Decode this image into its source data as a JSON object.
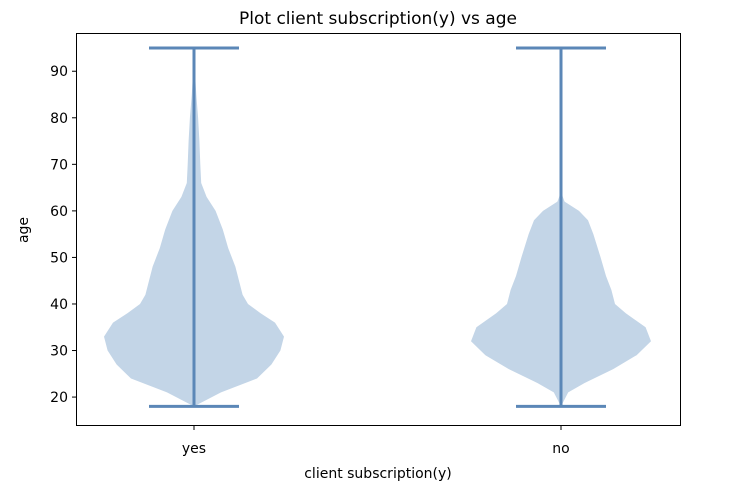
{
  "chart_data": {
    "type": "violin",
    "title": "Plot client subscription(y) vs age",
    "xlabel": "client subscription(y)",
    "ylabel": "age",
    "categories": [
      "yes",
      "no"
    ],
    "ylim": [
      14,
      98
    ],
    "yticks": [
      20,
      30,
      40,
      50,
      60,
      70,
      80,
      90
    ],
    "grid": false,
    "colors": {
      "fill": "#c3d5e7",
      "line": "#5b87b7"
    },
    "violins": [
      {
        "category": "yes",
        "min": 18,
        "max": 95,
        "profile": [
          [
            18,
            0.0
          ],
          [
            21,
            0.3
          ],
          [
            24,
            0.7
          ],
          [
            27,
            0.86
          ],
          [
            30,
            0.96
          ],
          [
            33,
            1.0
          ],
          [
            36,
            0.9
          ],
          [
            38,
            0.74
          ],
          [
            40,
            0.6
          ],
          [
            42,
            0.54
          ],
          [
            45,
            0.5
          ],
          [
            48,
            0.46
          ],
          [
            52,
            0.38
          ],
          [
            56,
            0.32
          ],
          [
            60,
            0.24
          ],
          [
            63,
            0.14
          ],
          [
            66,
            0.08
          ],
          [
            70,
            0.07
          ],
          [
            75,
            0.06
          ],
          [
            80,
            0.045
          ],
          [
            85,
            0.025
          ],
          [
            90,
            0.01
          ],
          [
            95,
            0.0
          ]
        ]
      },
      {
        "category": "no",
        "min": 18,
        "max": 95,
        "profile": [
          [
            18,
            0.0
          ],
          [
            21,
            0.08
          ],
          [
            23,
            0.26
          ],
          [
            26,
            0.58
          ],
          [
            29,
            0.84
          ],
          [
            32,
            1.0
          ],
          [
            35,
            0.94
          ],
          [
            38,
            0.72
          ],
          [
            40,
            0.6
          ],
          [
            43,
            0.56
          ],
          [
            46,
            0.5
          ],
          [
            50,
            0.44
          ],
          [
            55,
            0.36
          ],
          [
            58,
            0.3
          ],
          [
            60,
            0.2
          ],
          [
            62,
            0.04
          ],
          [
            63,
            0.02
          ],
          [
            65,
            0.0
          ],
          [
            95,
            0.0
          ]
        ]
      }
    ]
  }
}
